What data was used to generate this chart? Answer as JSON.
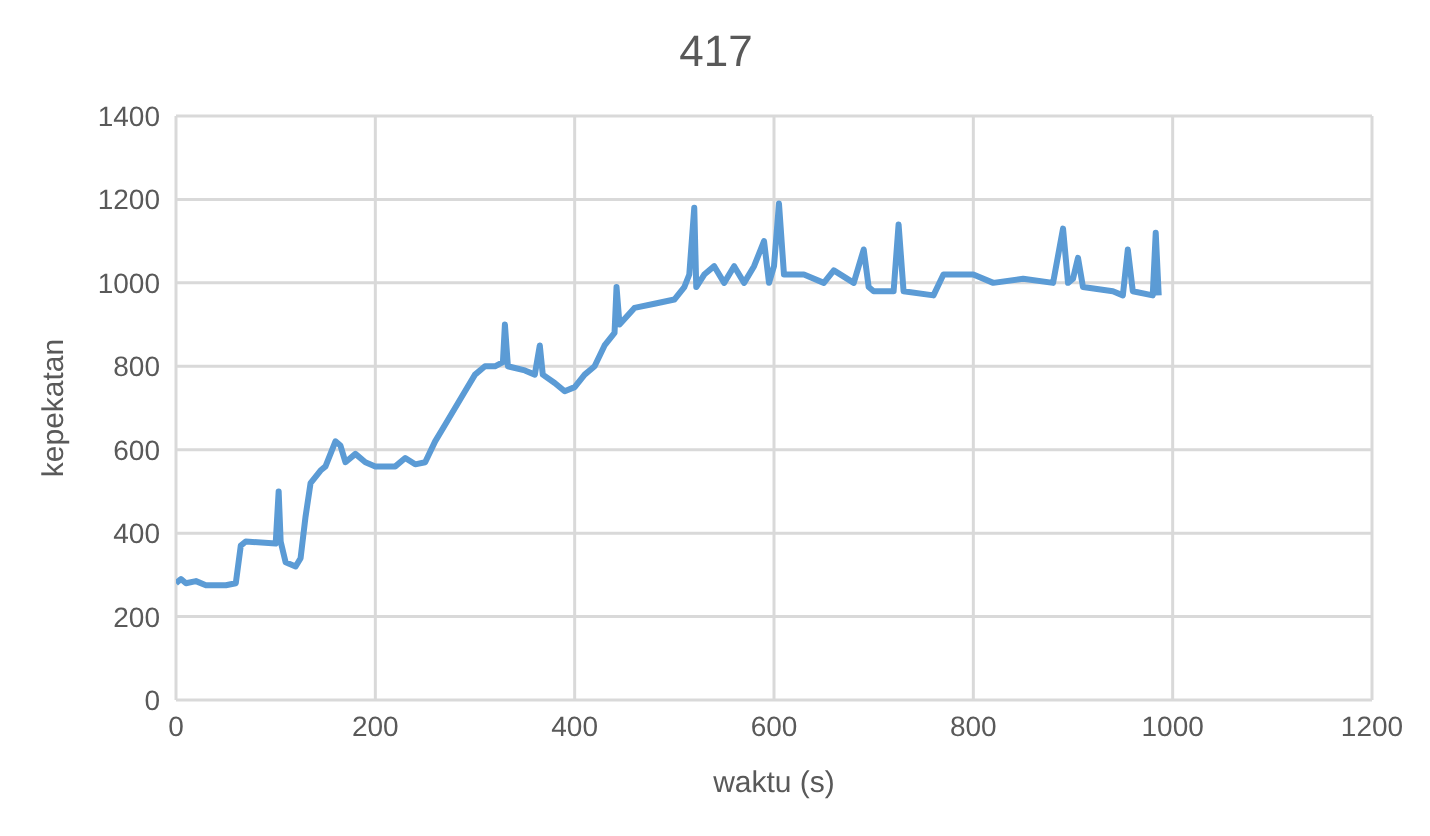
{
  "chart_data": {
    "type": "line",
    "title": "417",
    "xlabel": "waktu (s)",
    "ylabel": "kepekatan",
    "xlim": [
      0,
      1200
    ],
    "xticks": [
      0,
      200,
      400,
      600,
      800,
      1000,
      1200
    ],
    "ylim": [
      0,
      1400
    ],
    "yticks": [
      0,
      200,
      400,
      600,
      800,
      1000,
      1200,
      1400
    ],
    "grid": true,
    "legend": false,
    "marker": "none",
    "line_style": "solid",
    "series": [
      {
        "color": "#5b9bd5",
        "x": [
          0,
          5,
          10,
          20,
          30,
          50,
          60,
          65,
          70,
          100,
          103,
          105,
          110,
          120,
          125,
          130,
          135,
          145,
          150,
          160,
          165,
          170,
          180,
          190,
          200,
          220,
          230,
          240,
          250,
          260,
          270,
          280,
          290,
          300,
          310,
          320,
          328,
          330,
          333,
          350,
          360,
          365,
          368,
          380,
          390,
          400,
          410,
          420,
          430,
          440,
          442,
          445,
          460,
          480,
          500,
          510,
          515,
          520,
          522,
          530,
          540,
          550,
          560,
          570,
          580,
          590,
          595,
          600,
          605,
          610,
          630,
          650,
          660,
          680,
          690,
          695,
          700,
          720,
          725,
          730,
          760,
          770,
          800,
          820,
          850,
          880,
          890,
          895,
          900,
          905,
          910,
          940,
          950,
          955,
          960,
          980,
          983,
          986
        ],
        "values": [
          280,
          290,
          280,
          285,
          275,
          275,
          280,
          370,
          380,
          375,
          500,
          380,
          330,
          320,
          340,
          440,
          520,
          550,
          560,
          620,
          610,
          570,
          590,
          570,
          560,
          560,
          580,
          565,
          570,
          620,
          660,
          700,
          740,
          780,
          800,
          800,
          810,
          900,
          800,
          790,
          780,
          850,
          780,
          760,
          740,
          750,
          780,
          800,
          850,
          880,
          990,
          900,
          940,
          950,
          960,
          990,
          1020,
          1180,
          990,
          1020,
          1040,
          1000,
          1040,
          1000,
          1040,
          1100,
          1000,
          1040,
          1190,
          1020,
          1020,
          1000,
          1030,
          1000,
          1080,
          990,
          980,
          980,
          1140,
          980,
          970,
          1020,
          1020,
          1000,
          1010,
          1000,
          1130,
          1000,
          1010,
          1060,
          990,
          980,
          970,
          1080,
          980,
          970,
          1120,
          970
        ]
      }
    ]
  }
}
